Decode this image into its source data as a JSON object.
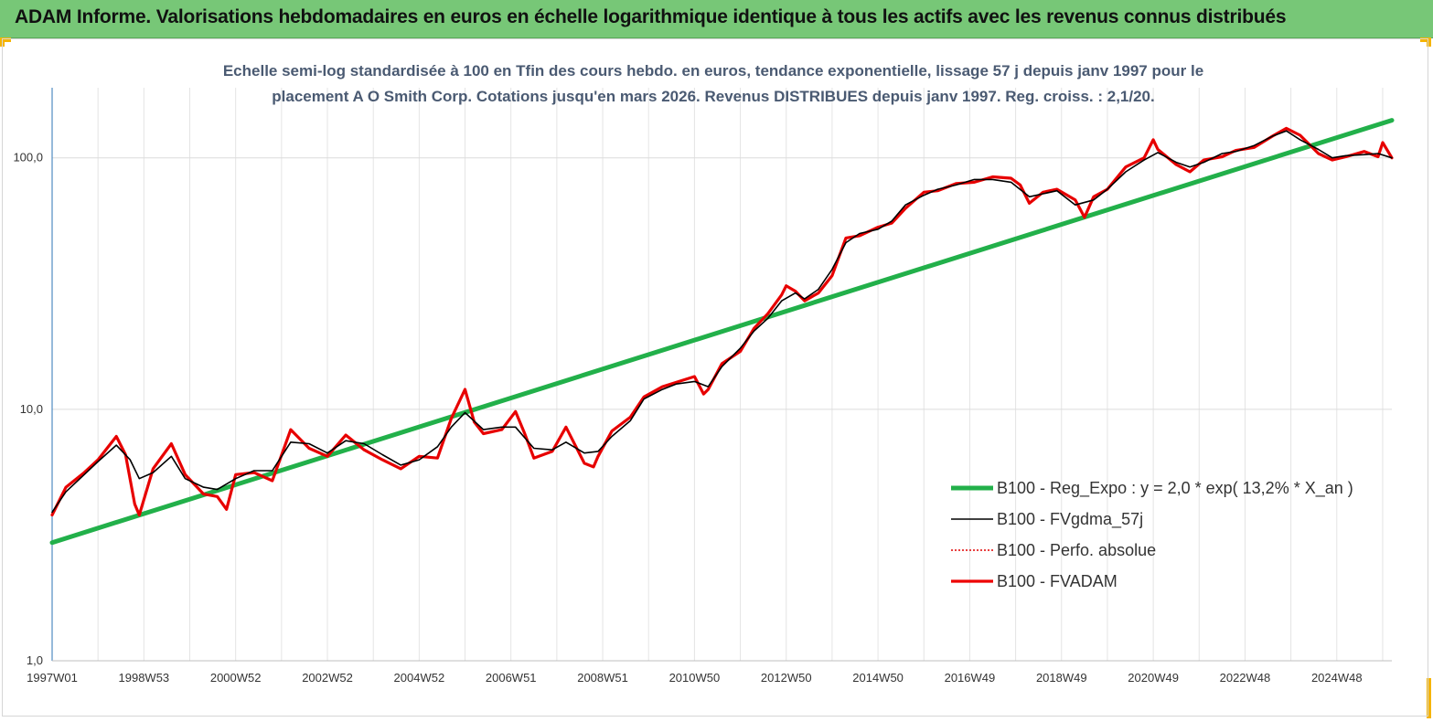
{
  "header": {
    "title": "ADAM Informe. Valorisations hebdomadaires en euros en échelle logarithmique identique à tous les actifs avec les revenus connus distribués"
  },
  "colors": {
    "header_bg": "#77c777",
    "corner_accent": "#f5b400",
    "trend": "#22b04a",
    "gdma": "#000000",
    "perfo": "#e00000",
    "fvadam": "#ee0000",
    "subtitle": "#4a5a72"
  },
  "chart_data": {
    "type": "line",
    "title": "Echelle semi-log standardisée à 100 en Tfin des cours hebdo. en euros, tendance exponentielle, lissage 57 j depuis janv 1997 pour le placement A O Smith Corp. Cotations jusqu'en mars 2026.  Revenus DISTRIBUES depuis janv 1997. Reg. croiss. : 2,1/20.",
    "title_lines": [
      "Echelle semi-log standardisée à 100 en Tfin des cours hebdo. en euros, tendance exponentielle, lissage 57 j depuis janv 1997 pour le",
      "placement A O Smith Corp. Cotations jusqu'en mars 2026.  Revenus DISTRIBUES depuis janv 1997. Reg. croiss. : 2,1/20."
    ],
    "y_scale": "log",
    "ylim": [
      1,
      190
    ],
    "xlim": [
      1997.0,
      2026.2
    ],
    "y_ticks": [
      {
        "value": 1,
        "label": "1,0"
      },
      {
        "value": 10,
        "label": "10,0"
      },
      {
        "value": 100,
        "label": "100,0"
      }
    ],
    "x_ticks": [
      {
        "value": 1997.0,
        "label": "1997W01"
      },
      {
        "value": 1999.0,
        "label": "1998W53"
      },
      {
        "value": 2001.0,
        "label": "2000W52"
      },
      {
        "value": 2003.0,
        "label": "2002W52"
      },
      {
        "value": 2005.0,
        "label": "2004W52"
      },
      {
        "value": 2007.0,
        "label": "2006W51"
      },
      {
        "value": 2009.0,
        "label": "2008W51"
      },
      {
        "value": 2011.0,
        "label": "2010W50"
      },
      {
        "value": 2013.0,
        "label": "2012W50"
      },
      {
        "value": 2015.0,
        "label": "2014W50"
      },
      {
        "value": 2017.0,
        "label": "2016W49"
      },
      {
        "value": 2019.0,
        "label": "2018W49"
      },
      {
        "value": 2021.0,
        "label": "2020W49"
      },
      {
        "value": 2023.0,
        "label": "2022W48"
      },
      {
        "value": 2025.0,
        "label": "2024W48"
      }
    ],
    "grid": "vertical and horizontal",
    "legend_position": "right-center",
    "series": [
      {
        "name": "B100 - Reg_Expo : y = 2,0 * exp( 13,2% *  X_an )",
        "style": "trend",
        "x": [
          1997.0,
          2026.2
        ],
        "y": [
          2.95,
          141
        ]
      },
      {
        "name": "B100 - FVgdma_57j",
        "style": "gdma",
        "x": [
          1997.0,
          1997.3,
          1997.7,
          1998.0,
          1998.4,
          1998.7,
          1998.9,
          1999.2,
          1999.6,
          1999.9,
          2000.3,
          2000.6,
          2001.0,
          2001.4,
          2001.8,
          2002.2,
          2002.6,
          2003.0,
          2003.4,
          2003.8,
          2004.2,
          2004.6,
          2005.0,
          2005.4,
          2005.7,
          2006.0,
          2006.4,
          2006.8,
          2007.1,
          2007.5,
          2007.9,
          2008.2,
          2008.6,
          2008.9,
          2009.2,
          2009.6,
          2009.9,
          2010.3,
          2010.6,
          2011.0,
          2011.3,
          2011.6,
          2012.0,
          2012.3,
          2012.6,
          2012.9,
          2013.2,
          2013.4,
          2013.7,
          2014.0,
          2014.3,
          2014.6,
          2015.0,
          2015.3,
          2015.6,
          2016.0,
          2016.3,
          2016.7,
          2017.1,
          2017.5,
          2017.9,
          2018.3,
          2018.6,
          2018.9,
          2019.3,
          2019.7,
          2020.0,
          2020.4,
          2020.8,
          2021.1,
          2021.5,
          2021.8,
          2022.1,
          2022.5,
          2022.8,
          2023.2,
          2023.6,
          2023.9,
          2024.2,
          2024.6,
          2024.9,
          2025.2,
          2025.6,
          2025.9,
          2026.2
        ],
        "y": [
          3.9,
          4.7,
          5.5,
          6.2,
          7.2,
          6.3,
          5.3,
          5.6,
          6.5,
          5.3,
          4.9,
          4.8,
          5.3,
          5.7,
          5.7,
          7.4,
          7.3,
          6.7,
          7.5,
          7.3,
          6.6,
          6.0,
          6.3,
          7.1,
          8.5,
          9.7,
          8.3,
          8.5,
          8.5,
          7.0,
          6.9,
          7.4,
          6.7,
          6.8,
          7.8,
          9.0,
          11.0,
          12.0,
          12.6,
          12.9,
          12.3,
          14.8,
          17.5,
          20.5,
          23.0,
          27.0,
          29.0,
          27.5,
          30.0,
          36.0,
          46.0,
          50.0,
          52.0,
          56.0,
          65.0,
          71.0,
          75.0,
          78.0,
          82.0,
          82.0,
          80.0,
          70.0,
          72.0,
          74.0,
          65.0,
          68.0,
          75.0,
          88.0,
          98.0,
          105.0,
          96.0,
          92.0,
          96.0,
          104.0,
          106.0,
          112.0,
          122.0,
          128.0,
          118.0,
          108.0,
          100.0,
          102.0,
          103.0,
          104.0,
          100.0
        ]
      },
      {
        "name": "B100 - Perfo. absolue",
        "style": "perfo",
        "x": [
          1997.0,
          1997.3,
          1997.7,
          1998.0,
          1998.4,
          1998.6,
          1998.8,
          1998.9,
          1999.2,
          1999.6,
          1999.9,
          2000.3,
          2000.6,
          2000.8,
          2001.0,
          2001.4,
          2001.8,
          2002.2,
          2002.6,
          2003.0,
          2003.4,
          2003.8,
          2004.2,
          2004.6,
          2005.0,
          2005.4,
          2005.7,
          2006.0,
          2006.2,
          2006.4,
          2006.8,
          2007.1,
          2007.3,
          2007.5,
          2007.9,
          2008.2,
          2008.6,
          2008.8,
          2008.9,
          2009.2,
          2009.6,
          2009.9,
          2010.3,
          2010.6,
          2011.0,
          2011.2,
          2011.3,
          2011.6,
          2012.0,
          2012.3,
          2012.6,
          2012.9,
          2013.0,
          2013.2,
          2013.4,
          2013.7,
          2014.0,
          2014.3,
          2014.6,
          2015.0,
          2015.3,
          2015.6,
          2016.0,
          2016.3,
          2016.7,
          2017.1,
          2017.5,
          2017.9,
          2018.1,
          2018.3,
          2018.6,
          2018.9,
          2019.3,
          2019.5,
          2019.7,
          2020.0,
          2020.4,
          2020.8,
          2021.0,
          2021.1,
          2021.5,
          2021.8,
          2022.1,
          2022.5,
          2022.8,
          2023.2,
          2023.6,
          2023.9,
          2024.2,
          2024.6,
          2024.9,
          2025.2,
          2025.6,
          2025.9,
          2026.0,
          2026.2
        ],
        "y": [
          3.8,
          4.9,
          5.6,
          6.3,
          7.8,
          6.6,
          4.2,
          3.8,
          5.8,
          7.3,
          5.5,
          4.6,
          4.5,
          4.0,
          5.5,
          5.6,
          5.2,
          8.3,
          7.0,
          6.5,
          7.9,
          6.9,
          6.3,
          5.8,
          6.5,
          6.4,
          9.2,
          12.0,
          8.9,
          8.0,
          8.3,
          9.8,
          8.0,
          6.4,
          6.8,
          8.5,
          6.1,
          5.9,
          6.5,
          8.2,
          9.3,
          11.2,
          12.3,
          12.8,
          13.5,
          11.5,
          12.0,
          15.2,
          17.0,
          21.0,
          24.0,
          28.5,
          31.0,
          29.5,
          27.0,
          29.0,
          34.0,
          48.0,
          49.0,
          53.0,
          55.0,
          63.0,
          73.0,
          74.0,
          79.0,
          80.0,
          84.0,
          83.0,
          78.0,
          66.0,
          73.0,
          75.0,
          68.0,
          58.0,
          70.0,
          75.0,
          92.0,
          100.0,
          118.0,
          108.0,
          94.0,
          88.0,
          98.0,
          101.0,
          107.0,
          110.0,
          122.0,
          131.0,
          123.0,
          104.0,
          98.0,
          101.0,
          106.0,
          101.0,
          115.0,
          100.0
        ]
      },
      {
        "name": "B100 - FVADAM",
        "style": "fvadam",
        "x": [
          1997.0,
          1997.3,
          1997.7,
          1998.0,
          1998.4,
          1998.6,
          1998.8,
          1998.9,
          1999.2,
          1999.6,
          1999.9,
          2000.3,
          2000.6,
          2000.8,
          2001.0,
          2001.4,
          2001.8,
          2002.2,
          2002.6,
          2003.0,
          2003.4,
          2003.8,
          2004.2,
          2004.6,
          2005.0,
          2005.4,
          2005.7,
          2006.0,
          2006.2,
          2006.4,
          2006.8,
          2007.1,
          2007.3,
          2007.5,
          2007.9,
          2008.2,
          2008.6,
          2008.8,
          2008.9,
          2009.2,
          2009.6,
          2009.9,
          2010.3,
          2010.6,
          2011.0,
          2011.2,
          2011.3,
          2011.6,
          2012.0,
          2012.3,
          2012.6,
          2012.9,
          2013.0,
          2013.2,
          2013.4,
          2013.7,
          2014.0,
          2014.3,
          2014.6,
          2015.0,
          2015.3,
          2015.6,
          2016.0,
          2016.3,
          2016.7,
          2017.1,
          2017.5,
          2017.9,
          2018.1,
          2018.3,
          2018.6,
          2018.9,
          2019.3,
          2019.5,
          2019.7,
          2020.0,
          2020.4,
          2020.8,
          2021.0,
          2021.1,
          2021.5,
          2021.8,
          2022.1,
          2022.5,
          2022.8,
          2023.2,
          2023.6,
          2023.9,
          2024.2,
          2024.6,
          2024.9,
          2025.2,
          2025.6,
          2025.9,
          2026.0,
          2026.2
        ],
        "y": [
          3.8,
          4.9,
          5.6,
          6.3,
          7.8,
          6.6,
          4.2,
          3.8,
          5.8,
          7.3,
          5.5,
          4.6,
          4.5,
          4.0,
          5.5,
          5.6,
          5.2,
          8.3,
          7.0,
          6.5,
          7.9,
          6.9,
          6.3,
          5.8,
          6.5,
          6.4,
          9.2,
          12.0,
          8.9,
          8.0,
          8.3,
          9.8,
          8.0,
          6.4,
          6.8,
          8.5,
          6.1,
          5.9,
          6.5,
          8.2,
          9.3,
          11.2,
          12.3,
          12.8,
          13.5,
          11.5,
          12.0,
          15.2,
          17.0,
          21.0,
          24.0,
          28.5,
          31.0,
          29.5,
          27.0,
          29.0,
          34.0,
          48.0,
          49.0,
          53.0,
          55.0,
          63.0,
          73.0,
          74.0,
          79.0,
          80.0,
          84.0,
          83.0,
          78.0,
          66.0,
          73.0,
          75.0,
          68.0,
          58.0,
          70.0,
          75.0,
          92.0,
          100.0,
          118.0,
          108.0,
          94.0,
          88.0,
          98.0,
          101.0,
          107.0,
          110.0,
          122.0,
          131.0,
          123.0,
          104.0,
          98.0,
          101.0,
          106.0,
          101.0,
          115.0,
          100.0
        ]
      }
    ]
  }
}
